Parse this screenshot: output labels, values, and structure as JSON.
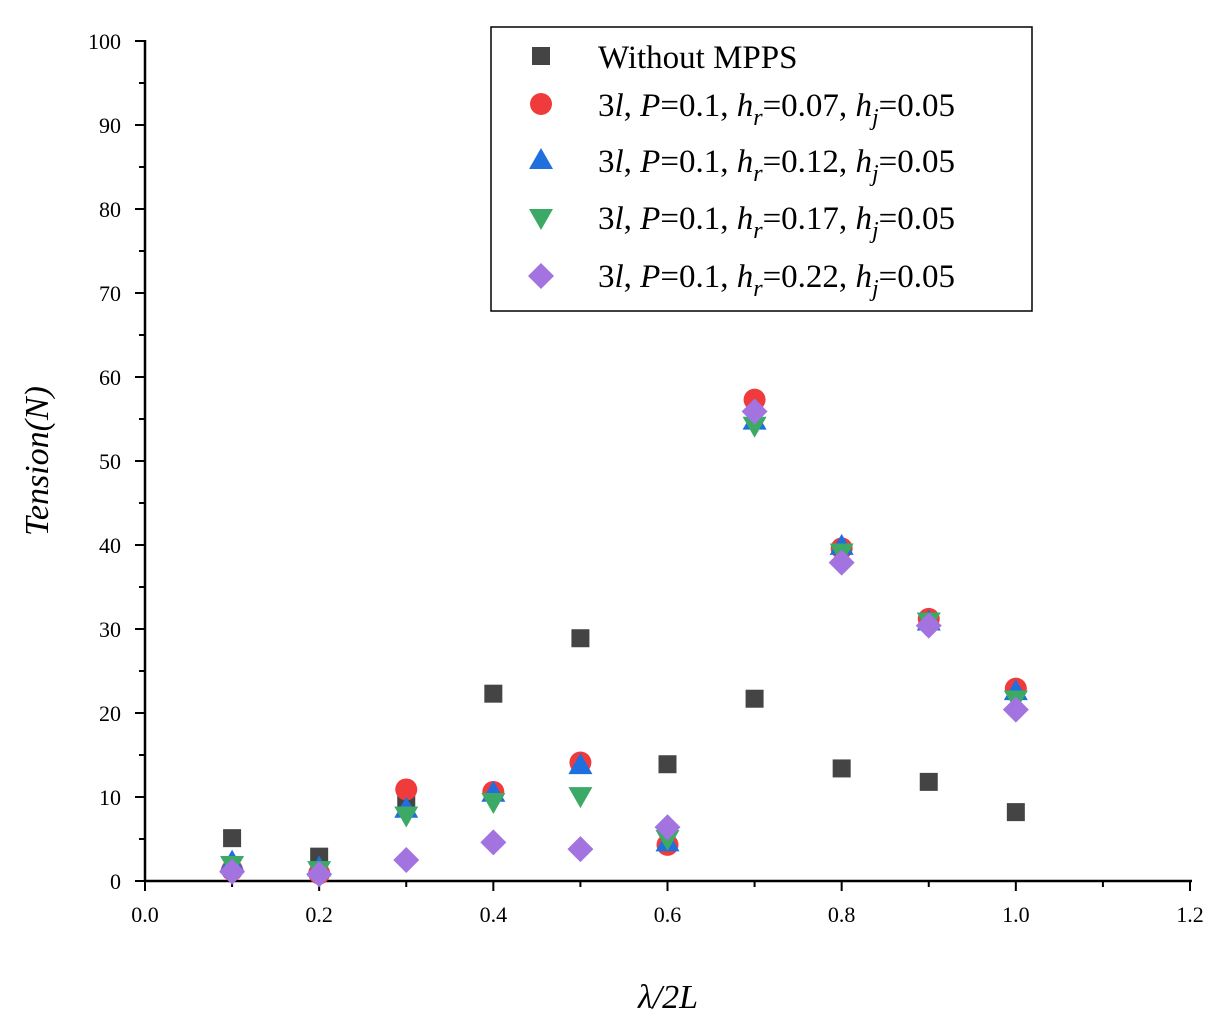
{
  "chart_data": {
    "type": "scatter",
    "title": "",
    "xlabel": "λ/2L",
    "ylabel": "Tension(N)",
    "xlim": [
      0.0,
      1.2
    ],
    "ylim": [
      0,
      100
    ],
    "xticks": [
      "0.0",
      "0.2",
      "0.4",
      "0.6",
      "0.8",
      "1.0",
      "1.2"
    ],
    "yticks": [
      "0",
      "10",
      "20",
      "30",
      "40",
      "50",
      "60",
      "70",
      "80",
      "90",
      "100"
    ],
    "grid": false,
    "legend_position": "top-right",
    "x": [
      0.1,
      0.2,
      0.3,
      0.4,
      0.5,
      0.6,
      0.7,
      0.8,
      0.9,
      1.0
    ],
    "series": [
      {
        "name": "Without MPPS",
        "marker": "square",
        "color": "#444444",
        "values": [
          5.1,
          2.9,
          9.7,
          22.3,
          28.9,
          13.9,
          21.7,
          13.4,
          11.8,
          8.2
        ]
      },
      {
        "name": "3l, P=0.1, hr=0.07, hj=0.05",
        "legend_parts": {
          "a": "3",
          "b": "l",
          "c": ", ",
          "d": "P",
          "e": "=0.1, ",
          "f": "h",
          "g": "r",
          "h": "=0.07, ",
          "i": "h",
          "j": "j",
          "k": "=0.05"
        },
        "marker": "circle",
        "color": "#ef3b3b",
        "values": [
          1.3,
          0.9,
          10.9,
          10.6,
          14.1,
          4.3,
          57.3,
          39.6,
          31.2,
          22.9
        ]
      },
      {
        "name": "3l, P=0.1, hr=0.12, hj=0.05",
        "legend_parts": {
          "a": "3",
          "b": "l",
          "c": ", ",
          "d": "P",
          "e": "=0.1, ",
          "f": "h",
          "g": "r",
          "h": "=0.12, ",
          "i": "h",
          "j": "j",
          "k": "=0.05"
        },
        "marker": "triangle-up",
        "color": "#1f6fdf",
        "values": [
          2.3,
          1.6,
          8.6,
          10.5,
          13.8,
          4.6,
          54.8,
          39.9,
          30.9,
          22.6
        ]
      },
      {
        "name": "3l, P=0.1, hr=0.17, hj=0.05",
        "legend_parts": {
          "a": "3",
          "b": "l",
          "c": ", ",
          "d": "P",
          "e": "=0.1, ",
          "f": "h",
          "g": "r",
          "h": "=0.17, ",
          "i": "h",
          "j": "j",
          "k": "=0.05"
        },
        "marker": "triangle-down",
        "color": "#3caa66",
        "values": [
          1.9,
          1.3,
          7.8,
          9.4,
          10.1,
          5.0,
          54.2,
          39.1,
          30.9,
          21.6
        ]
      },
      {
        "name": "3l, P=0.1, hr=0.22, hj=0.05",
        "legend_parts": {
          "a": "3",
          "b": "l",
          "c": ", ",
          "d": "P",
          "e": "=0.1, ",
          "f": "h",
          "g": "r",
          "h": "=0.22, ",
          "i": "h",
          "j": "j",
          "k": "=0.05"
        },
        "marker": "diamond",
        "color": "#a374e0",
        "values": [
          1.1,
          0.8,
          2.5,
          4.6,
          3.8,
          6.4,
          55.9,
          37.9,
          30.4,
          20.4
        ]
      }
    ]
  }
}
